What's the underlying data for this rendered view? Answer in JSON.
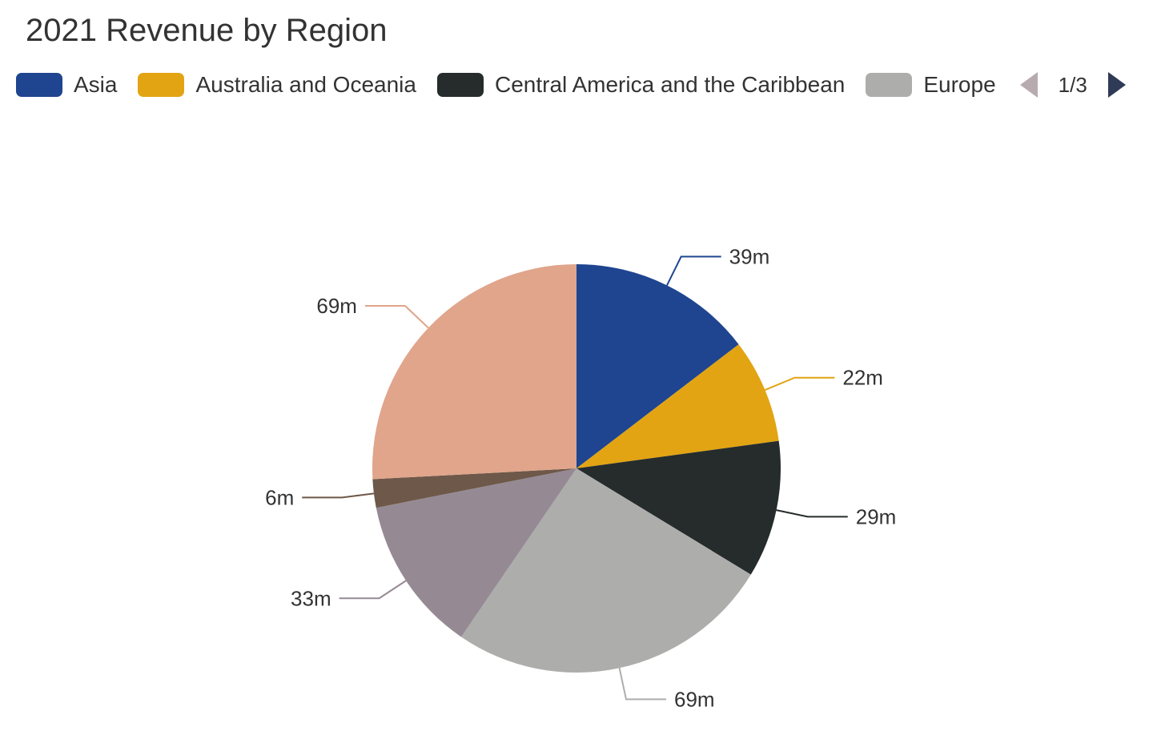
{
  "chart_data": {
    "type": "pie",
    "title": "2021 Revenue by Region",
    "slices": [
      {
        "name": "Asia",
        "value": 39,
        "label": "39m",
        "color": "#1f4590"
      },
      {
        "name": "Australia and Oceania",
        "value": 22,
        "label": "22m",
        "color": "#e2a412"
      },
      {
        "name": "Central America and the Caribbean",
        "value": 29,
        "label": "29m",
        "color": "#262c2c"
      },
      {
        "name": "Europe",
        "value": 69,
        "label": "69m",
        "color": "#adadac"
      },
      {
        "name": "",
        "value": 33,
        "label": "33m",
        "color": "#958a94"
      },
      {
        "name": "",
        "value": 6,
        "label": "6m",
        "color": "#6e5849"
      },
      {
        "name": "",
        "value": 69,
        "label": "69m",
        "color": "#e0a58b"
      }
    ],
    "legend": {
      "placement": "top-left",
      "visible_items": [
        {
          "label": "Asia",
          "color": "#1f4590"
        },
        {
          "label": "Australia and Oceania",
          "color": "#e2a412"
        },
        {
          "label": "Central America and the Caribbean",
          "color": "#262c2c"
        },
        {
          "label": "Europe",
          "color": "#adadac"
        }
      ],
      "page_indicator": "1/3"
    }
  }
}
